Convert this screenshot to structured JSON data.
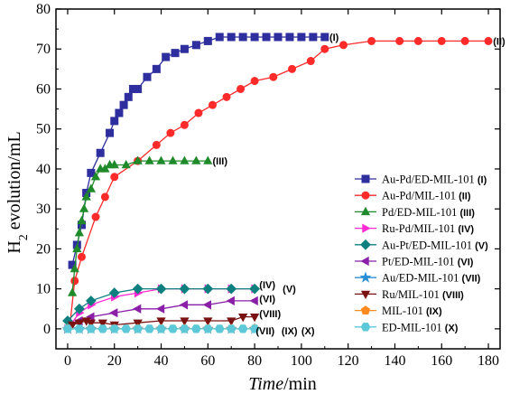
{
  "chart_data": {
    "type": "line",
    "title": "",
    "xlabel_italic": "Time",
    "xlabel_rest": "/min",
    "ylabel_pre": "H",
    "ylabel_sub": "2",
    "ylabel_post": " evolution/mL",
    "xlim": [
      -5,
      185
    ],
    "ylim": [
      -5,
      80
    ],
    "xticks": [
      0,
      20,
      40,
      60,
      80,
      100,
      120,
      140,
      160,
      180
    ],
    "yticks": [
      0,
      10,
      20,
      30,
      40,
      50,
      60,
      70,
      80
    ],
    "grid": false,
    "legend_position": "right",
    "series": [
      {
        "name": "Au-Pd/ED-MIL-101",
        "tag": "(I)",
        "color": "#2e2e9e",
        "marker": "square",
        "x": [
          2,
          4,
          6,
          8,
          10,
          14,
          18,
          20,
          22,
          24,
          26,
          28,
          30,
          34,
          38,
          42,
          46,
          50,
          55,
          60,
          65,
          70,
          75,
          80,
          85,
          90,
          95,
          100,
          105,
          110
        ],
        "y": [
          16,
          21,
          26,
          34,
          39,
          44,
          49,
          52,
          54,
          56,
          58,
          60,
          60,
          63,
          65,
          68,
          69,
          70,
          71,
          72,
          73,
          73,
          73,
          73,
          73,
          73,
          73,
          73,
          73,
          73
        ]
      },
      {
        "name": "Au-Pd/MIL-101",
        "tag": "(II)",
        "color": "#ff2a2a",
        "marker": "circle",
        "x": [
          1,
          3,
          6,
          12,
          16,
          20,
          30,
          38,
          44,
          50,
          56,
          62,
          68,
          74,
          80,
          88,
          96,
          104,
          110,
          118,
          130,
          142,
          150,
          160,
          170,
          180
        ],
        "y": [
          1,
          12,
          18,
          28,
          33,
          38,
          42,
          46,
          49,
          51,
          54,
          56,
          58,
          60,
          62,
          63,
          65,
          67,
          70,
          71,
          72,
          72,
          72,
          72,
          72,
          72
        ]
      },
      {
        "name": "Pd/ED-MIL-101",
        "tag": "(III)",
        "color": "#1f8a2a",
        "marker": "triangle-up",
        "x": [
          2,
          3,
          4,
          5,
          6,
          7,
          8,
          10,
          12,
          14,
          16,
          18,
          20,
          25,
          30,
          35,
          40,
          45,
          50,
          55,
          60
        ],
        "y": [
          9,
          15,
          20,
          24,
          27,
          30,
          33,
          35,
          38,
          40,
          40,
          41,
          41,
          41,
          42,
          42,
          42,
          42,
          42,
          42,
          42
        ]
      },
      {
        "name": "Ru-Pd/MIL-101",
        "tag": "(IV)",
        "color": "#ff2ad4",
        "marker": "triangle-right",
        "x": [
          0,
          5,
          10,
          20,
          30,
          40,
          50,
          60,
          70,
          80
        ],
        "y": [
          0,
          4,
          6,
          8,
          9,
          10,
          10,
          10,
          10,
          10
        ]
      },
      {
        "name": "Au-Pt/ED-MIL-101",
        "tag": "(V)",
        "color": "#0e7f7f",
        "marker": "diamond",
        "x": [
          0,
          5,
          10,
          20,
          30,
          40,
          50,
          60,
          70,
          80
        ],
        "y": [
          2,
          5,
          7,
          9,
          10,
          10,
          10,
          10,
          10,
          10
        ]
      },
      {
        "name": "Pt/ED-MIL-101",
        "tag": "(VI)",
        "color": "#8a1fa8",
        "marker": "triangle-left",
        "x": [
          0,
          5,
          10,
          20,
          30,
          40,
          50,
          60,
          70,
          80
        ],
        "y": [
          0,
          2,
          3,
          4,
          5,
          5,
          6,
          6,
          7,
          7
        ]
      },
      {
        "name": "Au/ED-MIL-101",
        "tag": "(VII)",
        "color": "#2a8fd4",
        "marker": "star",
        "x": [
          0,
          5,
          10,
          20,
          30,
          40,
          50,
          60,
          70,
          80
        ],
        "y": [
          0,
          0,
          0,
          0,
          0,
          0,
          0,
          0,
          0,
          0
        ]
      },
      {
        "name": "Ru/MIL-101",
        "tag": "(VIII)",
        "color": "#7a1212",
        "marker": "triangle-down",
        "x": [
          2,
          5,
          8,
          10,
          15,
          20,
          30,
          40,
          50,
          60,
          70,
          75,
          80
        ],
        "y": [
          1,
          1.5,
          2,
          1.5,
          1.5,
          1,
          1.5,
          2,
          2,
          2,
          2,
          3,
          3
        ]
      },
      {
        "name": "MIL-101",
        "tag": "(IX)",
        "color": "#ff8a1f",
        "marker": "pentagon",
        "x": [
          0,
          10,
          20,
          30,
          40,
          50,
          60,
          70,
          80
        ],
        "y": [
          0,
          0,
          0,
          0,
          0,
          0,
          0,
          0,
          0
        ]
      },
      {
        "name": "ED-MIL-101",
        "tag": "(X)",
        "color": "#5cc8d8",
        "marker": "hexagon",
        "x": [
          0,
          5,
          10,
          15,
          20,
          25,
          30,
          35,
          40,
          45,
          50,
          55,
          60,
          65,
          70,
          75,
          80
        ],
        "y": [
          0,
          0,
          0,
          0,
          0,
          0,
          0,
          0,
          0,
          0,
          0,
          0,
          0,
          0,
          0,
          0,
          0
        ]
      }
    ],
    "annotations": [
      {
        "text": "(I)",
        "x": 112,
        "y": 73
      },
      {
        "text": "(II)",
        "x": 182,
        "y": 72
      },
      {
        "text": "(III)",
        "x": 62,
        "y": 42
      },
      {
        "text": "(IV)",
        "x": 82,
        "y": 11
      },
      {
        "text": "(V)",
        "x": 92,
        "y": 10
      },
      {
        "text": "(VI)",
        "x": 82,
        "y": 7.5
      },
      {
        "text": "(VIII)",
        "x": 82,
        "y": 3.8
      },
      {
        "text": "(VII)",
        "x": 80.5,
        "y": -0.5
      },
      {
        "text": "(IX)",
        "x": 91.5,
        "y": -0.5
      },
      {
        "text": "(X)",
        "x": 100,
        "y": -0.5
      }
    ]
  }
}
